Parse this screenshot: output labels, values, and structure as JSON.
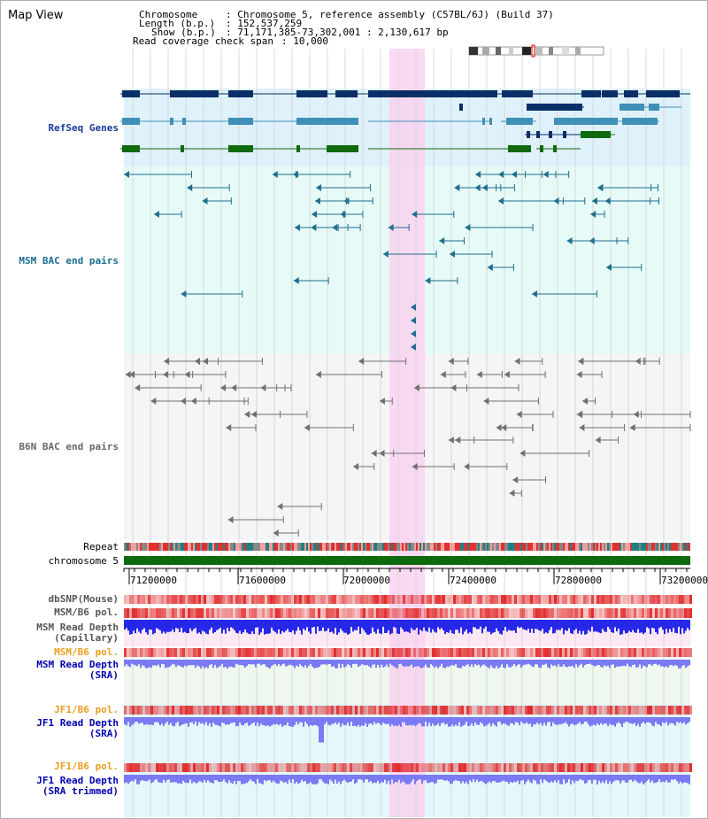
{
  "title": "Map View",
  "header": {
    "chromosome_key": "Chromosome",
    "chromosome_value": ": Chromosome 5, reference assembly (C57BL/6J) (Build 37)",
    "length_key": "Length (b.p.)",
    "length_value": ": 152,537,259",
    "show_key": "Show (b.p.)",
    "show_value": ": 71,171,385-73,302,001 : 2,130,617 bp",
    "span_key": "Read coverage check span",
    "span_value": ": 10,000"
  },
  "tracks": {
    "refseq": "RefSeq Genes",
    "msm_bac": "MSM BAC end pairs",
    "b6n_bac": "B6N BAC end pairs",
    "repeat": "Repeat",
    "chromosome": "chromosome 5",
    "dbsnp": "dbSNP(Mouse)",
    "msm_pol": "MSM/B6 pol.",
    "msm_depth_cap_1": "MSM Read Depth",
    "msm_depth_cap_2": "(Capillary)",
    "msm_pol_sra": "MSM/B6 pol.",
    "msm_depth_sra_1": "MSM Read Depth",
    "msm_depth_sra_2": "(SRA)",
    "jf1_pol": "JF1/B6 pol.",
    "jf1_depth_1": "JF1 Read Depth",
    "jf1_depth_2": "(SRA)",
    "jf1_pol_2": "JF1/B6 pol.",
    "jf1_trim_1": "JF1 Read Depth",
    "jf1_trim_2": "(SRA trimmed)"
  },
  "axis_ticks": [
    "71200000",
    "71600000",
    "72000000",
    "72400000",
    "72800000",
    "73200000"
  ],
  "colors": {
    "refseq_bg": "#dff1fb",
    "msm_bg": "#e6fbf8",
    "b6n_bg": "#f5f5f7",
    "highlight": "#f9d2f0",
    "gene_dark": "#0a2f66",
    "gene_mid": "#3f8fb7",
    "gene_green": "#0f6a0f",
    "msm_line": "#1f6e8e",
    "b6n_line": "#707070",
    "chromosome": "#0d6a0d",
    "depth_blue": "#2727e8",
    "depth_light": "#7a7af5",
    "label_refseq": "#1a3a9a",
    "label_msm": "#1a6e8f",
    "label_b6n": "#666666",
    "label_pol": "#e8a020",
    "label_depth": "#0000b0"
  }
}
